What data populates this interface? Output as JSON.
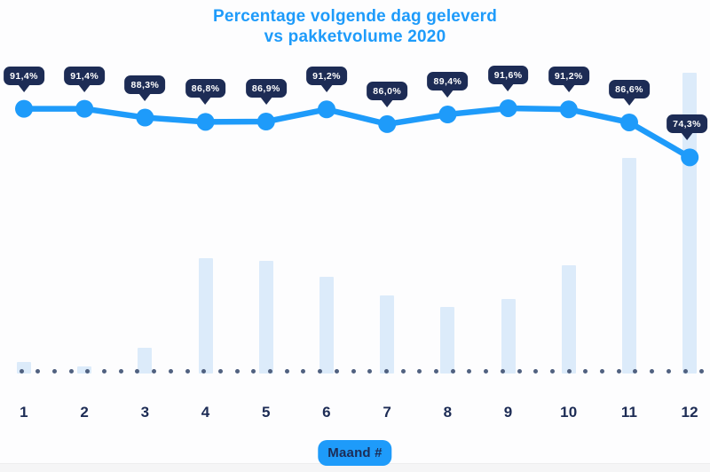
{
  "title": {
    "line1": "Percentage volgende dag geleverd",
    "line2": "vs pakketvolume 2020"
  },
  "xaxis": {
    "label": "Maand #",
    "tick_labels": [
      "1",
      "2",
      "3",
      "4",
      "5",
      "6",
      "7",
      "8",
      "9",
      "10",
      "11",
      "12"
    ]
  },
  "colors": {
    "accent_blue": "#1E9BFA",
    "navy": "#1D2C55",
    "bar_light_blue": "#DCEBFA",
    "baseline_dot": "#506180",
    "badge_text": "#FFFFFF",
    "background": "#FDFDFE"
  },
  "chart_data": {
    "type": "combo",
    "title": "Percentage volgende dag geleverd vs pakketvolume 2020",
    "xlabel": "Maand #",
    "categories": [
      "1",
      "2",
      "3",
      "4",
      "5",
      "6",
      "7",
      "8",
      "9",
      "10",
      "11",
      "12"
    ],
    "series": [
      {
        "name": "Percentage volgende dag geleverd",
        "type": "line",
        "unit": "%",
        "values": [
          91.4,
          91.4,
          88.3,
          86.8,
          86.9,
          91.2,
          86.0,
          89.4,
          91.6,
          91.2,
          86.6,
          74.3
        ],
        "point_labels": [
          "91,4%",
          "91,4%",
          "88,3%",
          "86,8%",
          "86,9%",
          "91,2%",
          "86,0%",
          "89,4%",
          "91,6%",
          "91,2%",
          "86,6%",
          "74,3%"
        ],
        "color": "#1E9BFA"
      },
      {
        "name": "Pakketvolume 2020",
        "type": "bar",
        "unit": "relative, unlabeled axis (estimated % of max)",
        "values": [
          3.8,
          2.3,
          8.6,
          38.3,
          37.5,
          32.2,
          26.0,
          22.1,
          24.8,
          36.0,
          71.7,
          100
        ],
        "color": "#DCEBFA"
      }
    ],
    "legend": false,
    "grid": false,
    "y_axis_visible": false,
    "baseline_style": "dotted"
  }
}
